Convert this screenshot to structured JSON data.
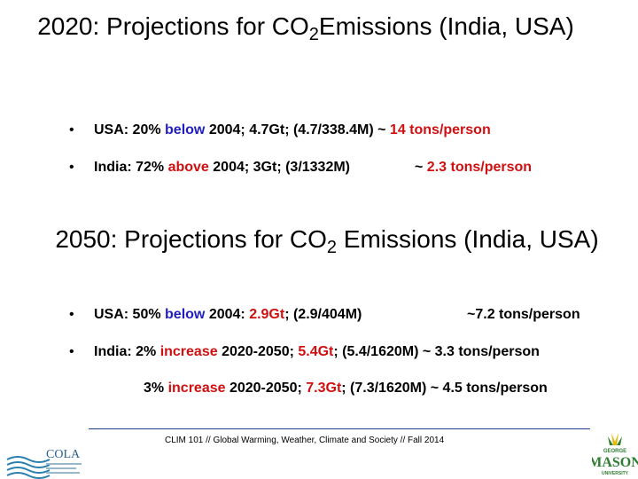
{
  "section_2020": {
    "title_pre": "2020: Projections for CO",
    "title_sub": "2",
    "title_post": "Emissions (India, USA)",
    "usa": {
      "a": "USA: 20% ",
      "b": "below",
      "c": " 2004; 4.7Gt; (4.7/338.4M) ~ ",
      "d": "14 tons/person"
    },
    "india": {
      "a": "India: 72% ",
      "b": "above",
      "c": " 2004; 3Gt; (3/1332M)",
      "d": "~ ",
      "e": "2.3 tons/person"
    }
  },
  "section_2050": {
    "title_pre": "2050: Projections for CO",
    "title_sub": "2",
    "title_post": " Emissions (India, USA)",
    "usa": {
      "a": "USA: 50% ",
      "b": "below",
      "c": " 2004: ",
      "d": "2.9Gt",
      "e": "; (2.9/404M)",
      "f": "~7.2 tons/person"
    },
    "india": {
      "a": "India: 2% ",
      "b": "increase",
      "c": " 2020-2050; ",
      "d": "5.4Gt",
      "e": "; (5.4/1620M) ~ 3.3 tons/person"
    },
    "india_alt": {
      "a": "3% ",
      "b": "increase",
      "c": " 2020-2050; ",
      "d": "7.3Gt",
      "e": "; (7.3/1620M)  ~ 4.5 tons/person"
    }
  },
  "bullet_symbol": "•",
  "footer": {
    "text": "CLIM 101 // Global Warming, Weather, Climate and Society // Fall 2014",
    "cola_logo_text": "COLA",
    "gmu_logo_top": "GEORGE",
    "gmu_logo_text": "MASON",
    "gmu_logo_bottom": "UNIVERSITY"
  },
  "colors": {
    "text": "#000000",
    "emphasis_blue": "#1f1fbf",
    "emphasis_red": "#d01010",
    "rule": "#1a3a8a",
    "gmu_green": "#2e7d32",
    "gmu_gold": "#e6b800"
  }
}
